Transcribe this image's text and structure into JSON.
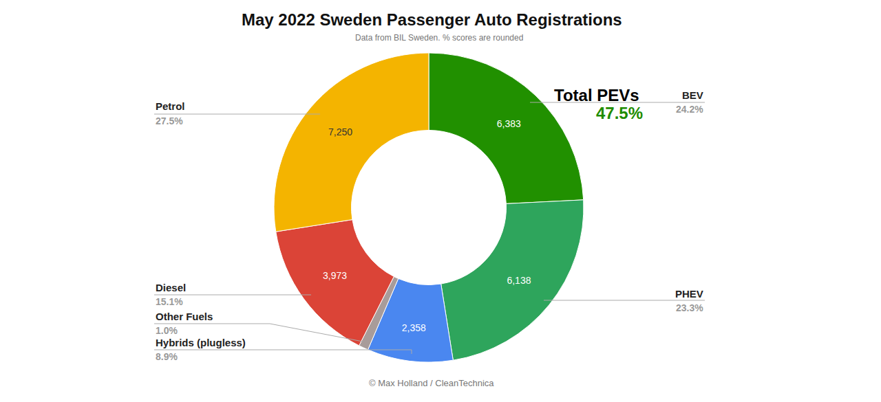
{
  "chart_data": {
    "type": "pie",
    "title": "May 2022 Sweden Passenger Auto Registrations",
    "subtitle": "Data from BIL Sweden. % scores are rounded",
    "categories": [
      "BEV",
      "PHEV",
      "Hybrids (plugless)",
      "Other Fuels",
      "Diesel",
      "Petrol"
    ],
    "values": [
      6383,
      6138,
      2358,
      264,
      3973,
      7250
    ],
    "value_labels": [
      "6,383",
      "6,138",
      "2,358",
      null,
      "3,973",
      "7,250"
    ],
    "share_labels": [
      "24.2%",
      "23.3%",
      "8.9%",
      "1.0%",
      "15.1%",
      "27.5%"
    ],
    "colors": [
      "#219000",
      "#2ea55c",
      "#4a87f0",
      "#a89c9a",
      "#db4437",
      "#f4b400"
    ],
    "data_labels": true,
    "annotations": [
      "Total PEVs",
      "47.5%"
    ],
    "credit": "© Max Holland / CleanTechnica"
  }
}
